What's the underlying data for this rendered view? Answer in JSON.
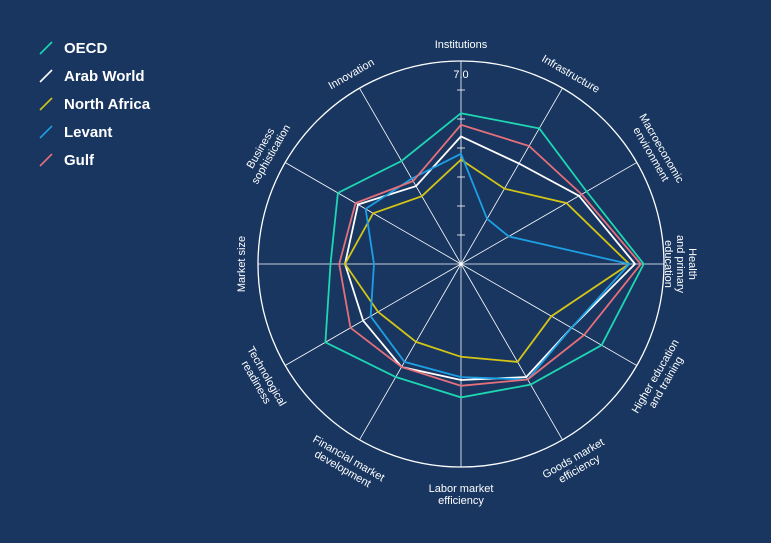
{
  "chart_data": {
    "type": "radar",
    "axes": [
      "Institutions",
      "Infrastructure",
      "Macroeconomic environment",
      "Health and primary education",
      "Higher education and training",
      "Goods market efficiency",
      "Labor market efficiency",
      "Financial market development",
      "Technological readiness",
      "Market size",
      "Business sophistication",
      "Innovation"
    ],
    "axis_label_lines": [
      [
        "Institutions"
      ],
      [
        "Infrastructure"
      ],
      [
        "Macroeconomic",
        "environment"
      ],
      [
        "Health",
        "and primary",
        "education"
      ],
      [
        "Higher education",
        "and training"
      ],
      [
        "Goods market",
        "efficiency"
      ],
      [
        "Labor market",
        "efficiency"
      ],
      [
        "Financial market",
        "development"
      ],
      [
        "Technological",
        "readiness"
      ],
      [
        "Market size"
      ],
      [
        "Business",
        "sophistication"
      ],
      [
        "Innovation"
      ]
    ],
    "rmax": 7.0,
    "tick_label": "7.0",
    "tick_values": [
      1,
      2,
      3,
      4,
      5,
      6
    ],
    "series": [
      {
        "name": "OECD",
        "color": "#1fd6b2",
        "values": [
          5.2,
          5.4,
          5.0,
          6.3,
          5.6,
          4.8,
          4.6,
          4.5,
          5.4,
          4.5,
          4.9,
          4.1
        ]
      },
      {
        "name": "Arab World",
        "color": "#ffffff",
        "values": [
          4.4,
          4.0,
          4.7,
          6.0,
          4.4,
          4.5,
          4.0,
          4.1,
          3.9,
          4.0,
          4.1,
          3.1
        ]
      },
      {
        "name": "North Africa",
        "color": "#d4c416",
        "values": [
          3.6,
          3.0,
          4.2,
          5.8,
          3.6,
          3.9,
          3.2,
          3.1,
          3.3,
          4.0,
          3.5,
          2.7
        ]
      },
      {
        "name": "Levant",
        "color": "#1e9fe3",
        "values": [
          3.8,
          1.8,
          1.9,
          5.8,
          4.4,
          4.6,
          3.9,
          3.9,
          3.6,
          3.0,
          3.8,
          3.4
        ]
      },
      {
        "name": "Gulf",
        "color": "#e5707a",
        "values": [
          4.8,
          4.7,
          4.8,
          6.2,
          4.9,
          4.6,
          4.2,
          4.1,
          4.4,
          4.2,
          4.2,
          3.3
        ]
      }
    ]
  }
}
